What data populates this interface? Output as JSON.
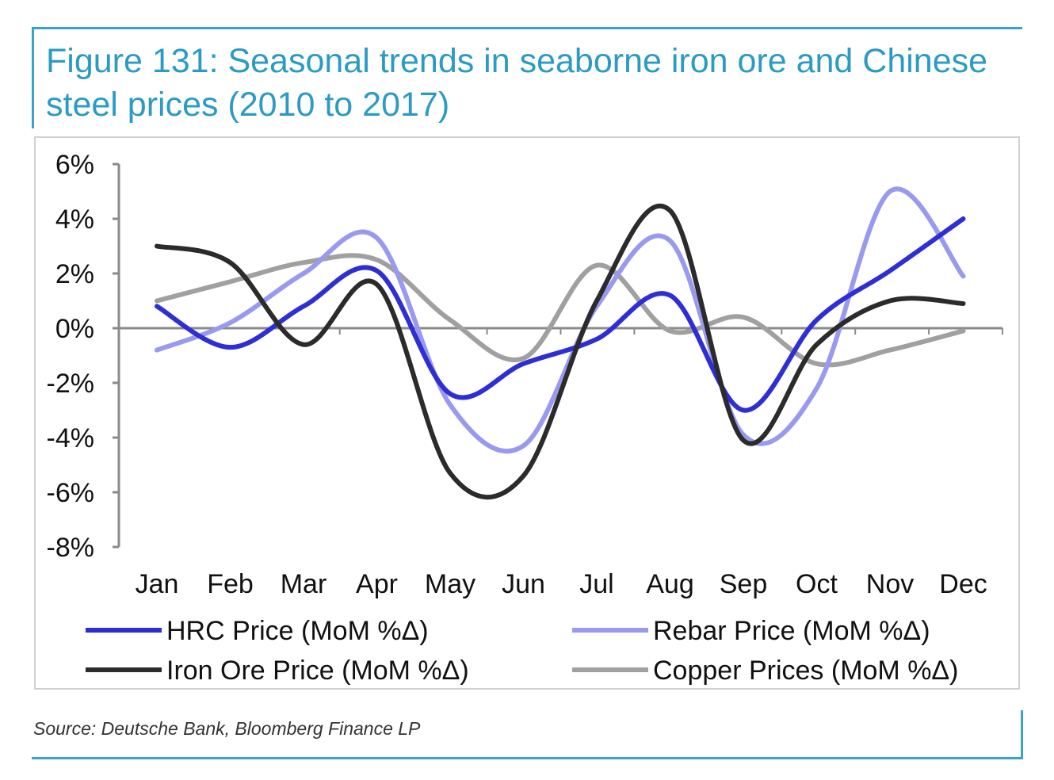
{
  "figure": {
    "title": "Figure 131: Seasonal trends in seaborne iron ore and Chinese steel prices (2010 to 2017)",
    "source": "Source: Deutsche Bank, Bloomberg Finance LP"
  },
  "chart_data": {
    "type": "line",
    "title": "Figure 131: Seasonal trends in seaborne iron ore and Chinese steel prices (2010 to 2017)",
    "xlabel": "",
    "ylabel": "",
    "categories": [
      "Jan",
      "Feb",
      "Mar",
      "Apr",
      "May",
      "Jun",
      "Jul",
      "Aug",
      "Sep",
      "Oct",
      "Nov",
      "Dec"
    ],
    "ylim": [
      -8,
      6
    ],
    "yticks": [
      6,
      4,
      2,
      0,
      -2,
      -4,
      -6,
      -8
    ],
    "ytick_labels": [
      "6%",
      "4%",
      "2%",
      "0%",
      "-2%",
      "-4%",
      "-6%",
      "-8%"
    ],
    "grid": false,
    "legend_position": "bottom",
    "series": [
      {
        "name": "HRC Price (MoM %Δ)",
        "color": "#2e2ed6",
        "values": [
          0.8,
          -0.7,
          0.8,
          2.1,
          -2.4,
          -1.3,
          -0.4,
          1.2,
          -3.0,
          0.3,
          2.1,
          4.0
        ]
      },
      {
        "name": "Rebar Price (MoM %Δ)",
        "color": "#9999f0",
        "values": [
          -0.8,
          0.2,
          2.0,
          3.3,
          -2.8,
          -4.3,
          0.8,
          3.2,
          -3.9,
          -2.2,
          5.0,
          1.9
        ]
      },
      {
        "name": "Iron Ore Price (MoM %Δ)",
        "color": "#2b2b2b",
        "values": [
          3.0,
          2.4,
          -0.6,
          1.6,
          -5.3,
          -5.4,
          1.0,
          4.3,
          -4.1,
          -0.6,
          1.0,
          0.9
        ]
      },
      {
        "name": "Copper Prices (MoM %Δ)",
        "color": "#a0a0a0",
        "values": [
          1.0,
          1.7,
          2.4,
          2.5,
          0.3,
          -1.1,
          2.3,
          -0.1,
          0.4,
          -1.3,
          -0.8,
          -0.1
        ]
      }
    ]
  }
}
